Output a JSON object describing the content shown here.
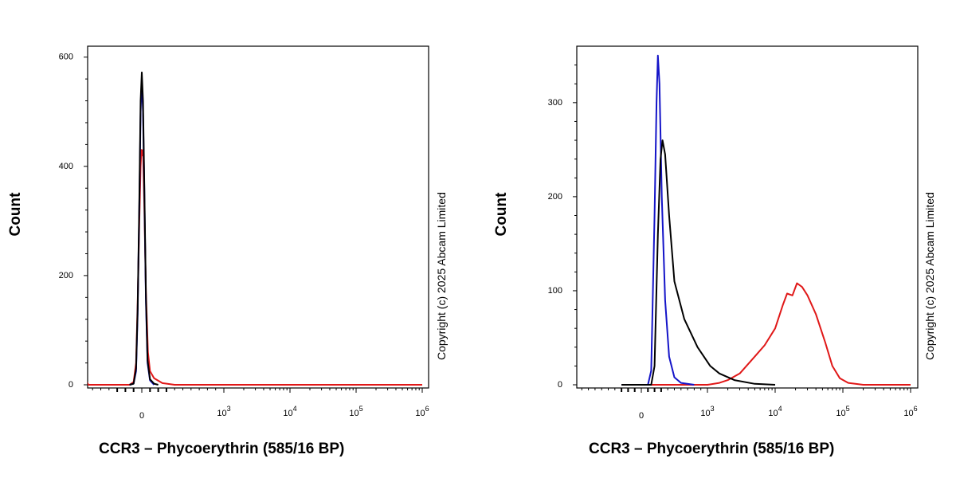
{
  "chart_data": [
    {
      "type": "line",
      "xlabel": "CCR3 – Phycoerythrin (585/16 BP)",
      "ylabel": "Count",
      "x_scale": "biexponential",
      "x_tick_labels": [
        "0",
        "10^3",
        "10^4",
        "10^5",
        "10^6"
      ],
      "y_ticks": [
        0,
        200,
        400,
        600
      ],
      "ylim": [
        0,
        620
      ],
      "watermark": "Copyright (c) 2025 Abcam Limited",
      "series": [
        {
          "color": "#1414c8",
          "points": [
            [
              -150,
              0
            ],
            [
              -100,
              2
            ],
            [
              -70,
              25
            ],
            [
              -50,
              130
            ],
            [
              -30,
              330
            ],
            [
              -15,
              500
            ],
            [
              0,
              558
            ],
            [
              15,
              500
            ],
            [
              30,
              360
            ],
            [
              50,
              150
            ],
            [
              70,
              40
            ],
            [
              100,
              8
            ],
            [
              150,
              0
            ]
          ]
        },
        {
          "color": "#000000",
          "points": [
            [
              -150,
              0
            ],
            [
              -100,
              2
            ],
            [
              -70,
              30
            ],
            [
              -50,
              140
            ],
            [
              -30,
              340
            ],
            [
              -15,
              520
            ],
            [
              0,
              572
            ],
            [
              15,
              520
            ],
            [
              30,
              370
            ],
            [
              50,
              160
            ],
            [
              70,
              45
            ],
            [
              100,
              10
            ],
            [
              150,
              2
            ],
            [
              200,
              0
            ]
          ]
        },
        {
          "color": "#e01818",
          "points": [
            [
              -800,
              40
            ],
            [
              -650,
              0
            ],
            [
              -150,
              0
            ],
            [
              -100,
              5
            ],
            [
              -70,
              40
            ],
            [
              -50,
              150
            ],
            [
              -30,
              300
            ],
            [
              -15,
              400
            ],
            [
              -5,
              430
            ],
            [
              5,
              420
            ],
            [
              15,
              430
            ],
            [
              30,
              330
            ],
            [
              50,
              170
            ],
            [
              75,
              60
            ],
            [
              100,
              25
            ],
            [
              150,
              12
            ],
            [
              250,
              3
            ],
            [
              400,
              0
            ],
            [
              1000000,
              0
            ]
          ]
        }
      ]
    },
    {
      "type": "line",
      "xlabel": "CCR3 – Phycoerythrin (585/16 BP)",
      "ylabel": "Count",
      "x_scale": "biexponential",
      "x_tick_labels": [
        "0",
        "10^3",
        "10^4",
        "10^5",
        "10^6"
      ],
      "y_ticks": [
        0,
        100,
        200,
        300
      ],
      "ylim": [
        0,
        360
      ],
      "watermark": "Copyright (c) 2025 Abcam Limited",
      "series": [
        {
          "color": "#1414c8",
          "points": [
            [
              -300,
              0
            ],
            [
              100,
              0
            ],
            [
              150,
              15
            ],
            [
              200,
              180
            ],
            [
              230,
              300
            ],
            [
              250,
              350
            ],
            [
              275,
              320
            ],
            [
              310,
              200
            ],
            [
              360,
              90
            ],
            [
              420,
              30
            ],
            [
              500,
              8
            ],
            [
              600,
              2
            ],
            [
              800,
              0
            ]
          ]
        },
        {
          "color": "#000000",
          "points": [
            [
              -300,
              0
            ],
            [
              150,
              0
            ],
            [
              200,
              20
            ],
            [
              250,
              160
            ],
            [
              290,
              240
            ],
            [
              320,
              260
            ],
            [
              360,
              245
            ],
            [
              420,
              180
            ],
            [
              500,
              110
            ],
            [
              650,
              70
            ],
            [
              850,
              40
            ],
            [
              1100,
              20
            ],
            [
              1500,
              12
            ],
            [
              2500,
              5
            ],
            [
              5000,
              1
            ],
            [
              10000,
              0
            ]
          ]
        },
        {
          "color": "#e01818",
          "points": [
            [
              -300,
              0
            ],
            [
              1000,
              0
            ],
            [
              1500,
              2
            ],
            [
              2000,
              5
            ],
            [
              3000,
              12
            ],
            [
              5000,
              30
            ],
            [
              7000,
              42
            ],
            [
              10000,
              60
            ],
            [
              13000,
              85
            ],
            [
              15000,
              97
            ],
            [
              18000,
              95
            ],
            [
              21000,
              108
            ],
            [
              25000,
              104
            ],
            [
              30000,
              95
            ],
            [
              40000,
              75
            ],
            [
              55000,
              45
            ],
            [
              70000,
              20
            ],
            [
              90000,
              7
            ],
            [
              120000,
              2
            ],
            [
              200000,
              0
            ],
            [
              1000000,
              0
            ]
          ]
        }
      ]
    }
  ]
}
